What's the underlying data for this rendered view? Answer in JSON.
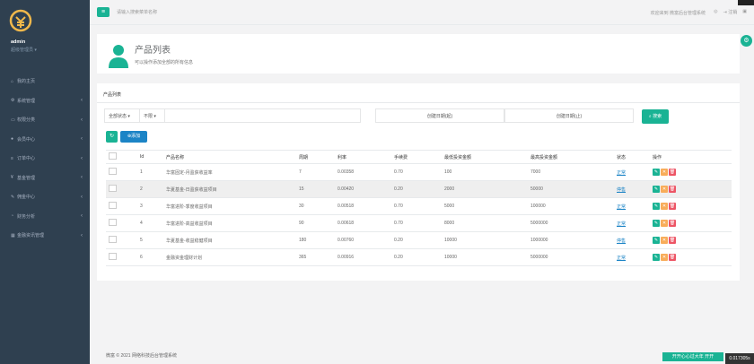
{
  "sidebar": {
    "user": "admin",
    "role": "超级管理员 ▾",
    "items": [
      {
        "icon": "home-icon",
        "label": "我的主页",
        "arrow": ""
      },
      {
        "icon": "gear-icon",
        "label": "系统管理",
        "arrow": "‹"
      },
      {
        "icon": "monitor-icon",
        "label": "权限分类",
        "arrow": "‹"
      },
      {
        "icon": "user-icon",
        "label": "会员中心",
        "arrow": "‹"
      },
      {
        "icon": "list-icon",
        "label": "订单中心",
        "arrow": "‹"
      },
      {
        "icon": "yen-icon",
        "label": "基金管理",
        "arrow": "‹"
      },
      {
        "icon": "wrench-icon",
        "label": "佣金中心",
        "arrow": "‹"
      },
      {
        "icon": "stats-icon",
        "label": "财务分析",
        "arrow": "‹"
      },
      {
        "icon": "chart-icon",
        "label": "金融资讯管理",
        "arrow": "‹"
      }
    ]
  },
  "topbar": {
    "search_placeholder": "请输入搜索菜单名称",
    "welcome": "欢迎来到 微富后台管理系统",
    "logout": "注销"
  },
  "header": {
    "title": "产品列表",
    "subtitle": "可以操作添加全部的所有信息"
  },
  "main": {
    "heading": "产品列表",
    "filter_status": "全部状态 ▾",
    "filter_type": "不限 ▾",
    "start_placeholder": "创建日期(起)",
    "end_placeholder": "创建日期(止)",
    "search_label": "搜索",
    "add_label": "添加",
    "columns": [
      "",
      "Id",
      "产品名称",
      "周期",
      "利率",
      "手续费",
      "最低投资金额",
      "最高投资金额",
      "状态",
      "操作"
    ],
    "rows": [
      {
        "id": "1",
        "name": "华富固定-月盈获收益率",
        "cycle": "7",
        "rate": "0.00358",
        "fee": "0.70",
        "min": "100",
        "max": "7000",
        "status": "正常",
        "alt": false
      },
      {
        "id": "2",
        "name": "华夏基金-日盈获收益项目",
        "cycle": "15",
        "rate": "0.00420",
        "fee": "0.20",
        "min": "2000",
        "max": "50000",
        "status": "停售",
        "alt": true
      },
      {
        "id": "3",
        "name": "华富进阶-季度收益项目",
        "cycle": "30",
        "rate": "0.00518",
        "fee": "0.70",
        "min": "5000",
        "max": "100000",
        "status": "正常",
        "alt": false
      },
      {
        "id": "4",
        "name": "华富进阶-高益收益项目",
        "cycle": "90",
        "rate": "0.00618",
        "fee": "0.70",
        "min": "8000",
        "max": "5000000",
        "status": "正常",
        "alt": false
      },
      {
        "id": "5",
        "name": "华夏基金-收益稳健项目",
        "cycle": "180",
        "rate": "0.00760",
        "fee": "0.20",
        "min": "10000",
        "max": "1000000",
        "status": "停售",
        "alt": false
      },
      {
        "id": "6",
        "name": "金融资金理财计划",
        "cycle": "365",
        "rate": "0.00916",
        "fee": "0.20",
        "min": "10000",
        "max": "5000000",
        "status": "正常",
        "alt": false
      }
    ]
  },
  "footer": {
    "copyright": "微富 © 2021 网络科技后台管理系统",
    "stamp": "开开心心过大年 开开",
    "timer": "0.017305s"
  },
  "colors": {
    "accent": "#1ab394",
    "blue": "#1c84c6",
    "warn": "#f8ac59",
    "danger": "#ed5565",
    "sidebar": "#2f4050"
  }
}
